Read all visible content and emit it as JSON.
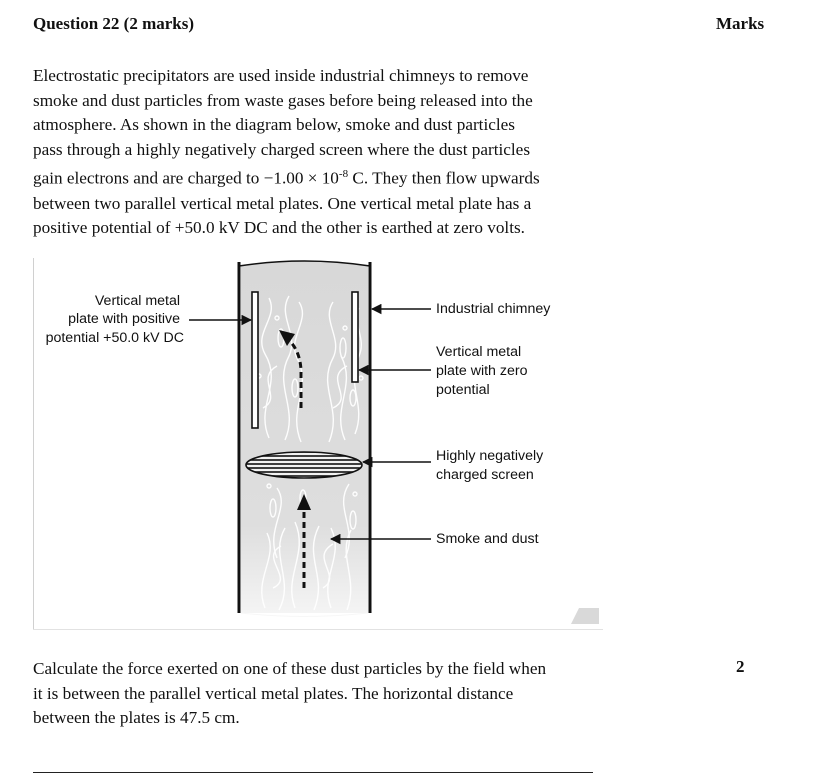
{
  "question": {
    "title": "Question 22 (2 marks)",
    "marks_header": "Marks",
    "intro_lines": [
      "Electrostatic precipitators are used inside industrial chimneys to remove",
      "smoke and dust particles from waste gases before being released into the",
      "atmosphere. As shown in the diagram below, smoke and dust particles",
      "pass through a highly negatively charged screen where the dust particles",
      "gain electrons and are charged to −1.00 × 10",
      "between two parallel vertical metal plates. One vertical metal plate has a",
      "positive potential of +50.0 kV DC and the other is earthed at zero volts."
    ],
    "charge_exponent": "-8",
    "charge_suffix": " C. They then flow upwards",
    "calc_lines": [
      "Calculate the force exerted on one of these dust particles by the field when",
      "it is between the parallel vertical metal plates. The horizontal distance",
      "between the plates is 47.5 cm."
    ],
    "marks_value": "2"
  },
  "diagram": {
    "left_label_lines": [
      "Vertical metal",
      "plate with positive",
      "potential +50.0 kV DC"
    ],
    "chimney_label": "Industrial chimney",
    "zero_plate_label_lines": [
      "Vertical metal",
      "plate with zero",
      "potential"
    ],
    "screen_label_lines": [
      "Highly negatively",
      "charged screen"
    ],
    "smoke_label": "Smoke and dust"
  }
}
